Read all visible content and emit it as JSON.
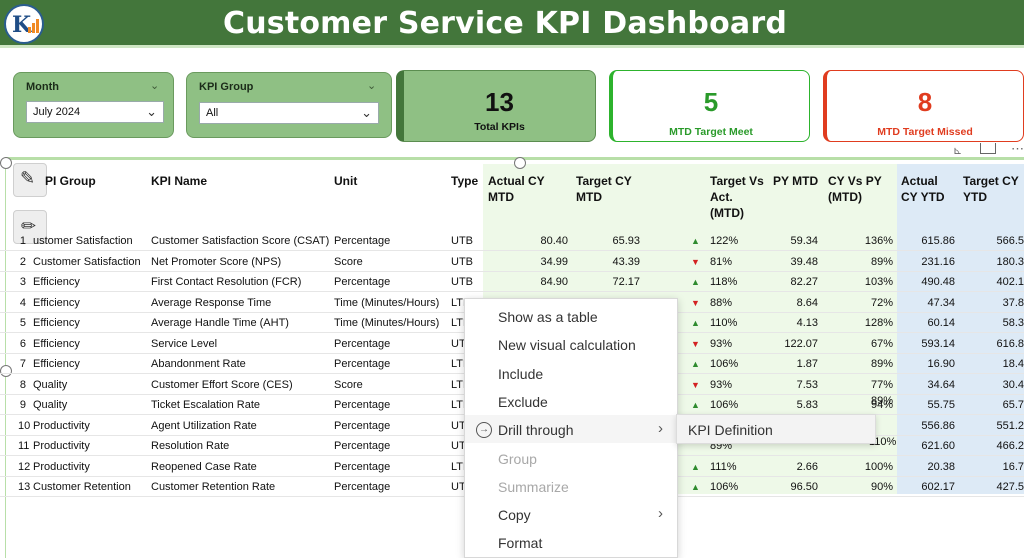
{
  "header": {
    "title": "Customer Service KPI Dashboard",
    "logo_icon": "kpi-logo-icon"
  },
  "filters": {
    "month": {
      "label": "Month",
      "value": "July 2024"
    },
    "kpi_group": {
      "label": "KPI Group",
      "value": "All"
    }
  },
  "cards": {
    "total": {
      "value": "13",
      "caption": "Total KPIs",
      "color": "#8fc084"
    },
    "meet": {
      "value": "5",
      "caption": "MTD Target Meet",
      "color": "#2db32d"
    },
    "missed": {
      "value": "8",
      "caption": "MTD Target Missed",
      "color": "#e03c1f"
    }
  },
  "table": {
    "headers": {
      "group": "PI Group",
      "name": "KPI Name",
      "unit": "Unit",
      "type": "Type",
      "actual_mtd": [
        "Actual CY",
        "MTD"
      ],
      "target_mtd": [
        "Target CY",
        "MTD"
      ],
      "tva": [
        "Target Vs",
        "Act.",
        "(MTD)"
      ],
      "py_mtd": "PY MTD",
      "cy_vs_py": [
        "CY Vs PY",
        "(MTD)"
      ],
      "actual_ytd": [
        "Actual",
        "CY YTD"
      ],
      "target_ytd": [
        "Target CY",
        "YTD"
      ]
    },
    "rows": [
      {
        "n": "1",
        "group": "ustomer Satisfaction",
        "name": "Customer Satisfaction Score (CSAT)",
        "unit": "Percentage",
        "type": "UTB",
        "actual": "80.40",
        "target": "65.93",
        "dir": "up",
        "tva": "122%",
        "py": "59.34",
        "cyvspy": "136%",
        "aytd": "615.86",
        "tytd": "566.5"
      },
      {
        "n": "2",
        "group": "Customer Satisfaction",
        "name": "Net Promoter Score (NPS)",
        "unit": "Score",
        "type": "UTB",
        "actual": "34.99",
        "target": "43.39",
        "dir": "down",
        "tva": "81%",
        "py": "39.48",
        "cyvspy": "89%",
        "aytd": "231.16",
        "tytd": "180.3"
      },
      {
        "n": "3",
        "group": "Efficiency",
        "name": "First Contact Resolution (FCR)",
        "unit": "Percentage",
        "type": "UTB",
        "actual": "84.90",
        "target": "72.17",
        "dir": "up",
        "tva": "118%",
        "py": "82.27",
        "cyvspy": "103%",
        "aytd": "490.48",
        "tytd": "402.1"
      },
      {
        "n": "4",
        "group": "Efficiency",
        "name": "Average Response Time",
        "unit": "Time (Minutes/Hours)",
        "type": "LTB",
        "actual": "",
        "target": "",
        "dir": "down",
        "tva": "88%",
        "py": "8.64",
        "cyvspy": "72%",
        "aytd": "47.34",
        "tytd": "37.8"
      },
      {
        "n": "5",
        "group": "Efficiency",
        "name": "Average Handle Time (AHT)",
        "unit": "Time (Minutes/Hours)",
        "type": "LTB",
        "actual": "",
        "target": "",
        "dir": "up",
        "tva": "110%",
        "py": "4.13",
        "cyvspy": "128%",
        "aytd": "60.14",
        "tytd": "58.3"
      },
      {
        "n": "6",
        "group": "Efficiency",
        "name": "Service Level",
        "unit": "Percentage",
        "type": "UTB",
        "actual": "",
        "target": "",
        "dir": "down",
        "tva": "93%",
        "py": "122.07",
        "cyvspy": "67%",
        "aytd": "593.14",
        "tytd": "616.8"
      },
      {
        "n": "7",
        "group": "Efficiency",
        "name": "Abandonment Rate",
        "unit": "Percentage",
        "type": "LTB",
        "actual": "",
        "target": "",
        "dir": "up",
        "tva": "106%",
        "py": "1.87",
        "cyvspy": "89%",
        "aytd": "16.90",
        "tytd": "18.4"
      },
      {
        "n": "8",
        "group": "Quality",
        "name": "Customer Effort Score (CES)",
        "unit": "Score",
        "type": "LTB",
        "actual": "",
        "target": "",
        "dir": "down",
        "tva": "93%",
        "py": "7.53",
        "cyvspy": "77%",
        "aytd": "34.64",
        "tytd": "30.4"
      },
      {
        "n": "9",
        "group": "Quality",
        "name": "Ticket Escalation Rate",
        "unit": "Percentage",
        "type": "LTB",
        "actual": "",
        "target": "",
        "dir": "up",
        "tva": "106%",
        "py": "5.83",
        "cyvspy": "94%",
        "aytd": "55.75",
        "tytd": "65.7"
      },
      {
        "n": "10",
        "group": "Productivity",
        "name": "Agent Utilization Rate",
        "unit": "Percentage",
        "type": "UTB",
        "actual": "",
        "target": "",
        "dir": "",
        "tva": "",
        "py": "",
        "cyvspy": "",
        "aytd": "556.86",
        "tytd": "551.2"
      },
      {
        "n": "11",
        "group": "Productivity",
        "name": "Resolution Rate",
        "unit": "Percentage",
        "type": "UTB",
        "actual": "",
        "target": "",
        "dir": "",
        "tva": "",
        "py": "",
        "cyvspy": "",
        "aytd": "621.60",
        "tytd": "466.2"
      },
      {
        "n": "12",
        "group": "Productivity",
        "name": "Reopened Case Rate",
        "unit": "Percentage",
        "type": "LTB",
        "actual": "",
        "target": "",
        "dir": "up",
        "tva": "111%",
        "py": "2.66",
        "cyvspy": "100%",
        "aytd": "20.38",
        "tytd": "16.7"
      },
      {
        "n": "13",
        "group": "Customer Retention",
        "name": "Customer Retention Rate",
        "unit": "Percentage",
        "type": "UTB",
        "actual": "",
        "target": "",
        "dir": "up",
        "tva": "106%",
        "py": "96.50",
        "cyvspy": "90%",
        "aytd": "602.17",
        "tytd": "427.5"
      }
    ]
  },
  "context_menu": {
    "items": [
      {
        "label": "Show as a table",
        "disabled": false,
        "submenu": false
      },
      {
        "label": "New visual calculation",
        "disabled": false,
        "submenu": false
      },
      {
        "label": "Include",
        "disabled": false,
        "submenu": false
      },
      {
        "label": "Exclude",
        "disabled": false,
        "submenu": false
      },
      {
        "label": "Drill through",
        "disabled": false,
        "submenu": true,
        "icon": "drill-through-icon"
      },
      {
        "label": "Group",
        "disabled": true,
        "submenu": false
      },
      {
        "label": "Summarize",
        "disabled": true,
        "submenu": false
      },
      {
        "label": "Copy",
        "disabled": false,
        "submenu": true
      },
      {
        "label": "Format",
        "disabled": false,
        "submenu": false
      }
    ],
    "submenu_item": "KPI Definition"
  },
  "partial_values": {
    "row8_py_tail": "89%",
    "row9_arrow_col": "0",
    "row10_cyvspy": "110%",
    "row11_tva_tail": "89%"
  }
}
